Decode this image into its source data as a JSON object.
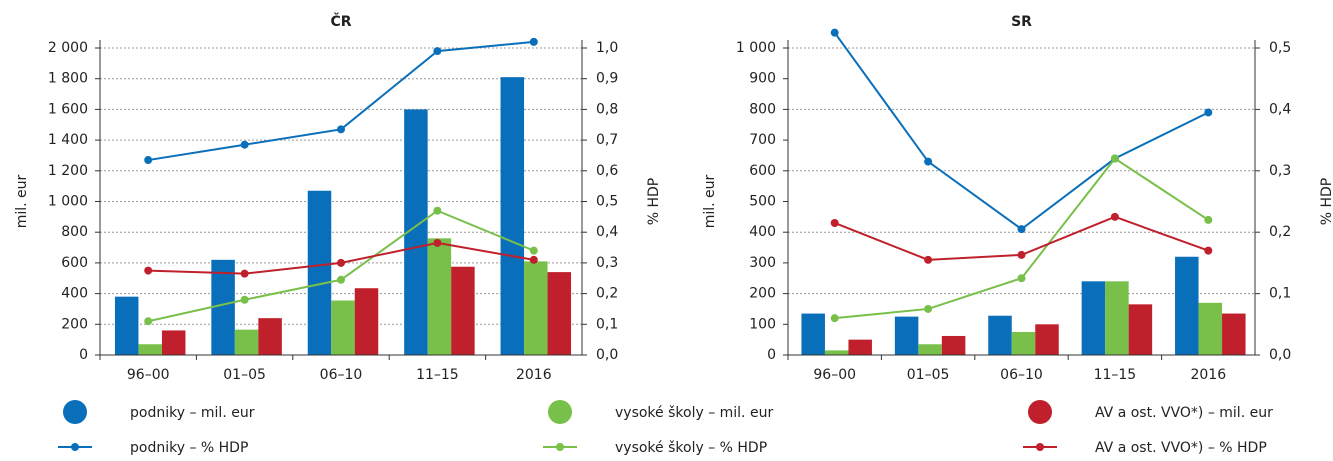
{
  "chart_data": [
    {
      "type": "bar",
      "title": "ČR",
      "ylabel": "mil. eur",
      "y2label": "% HDP",
      "categories": [
        "96–00",
        "01–05",
        "06–10",
        "11–15",
        "2016"
      ],
      "ylim": [
        0,
        2000
      ],
      "yticks": [
        0,
        200,
        400,
        600,
        800,
        {
          "value": 1000,
          "label": "1 000"
        },
        {
          "value": 1200,
          "label": "1 200"
        },
        {
          "value": 1400,
          "label": "1 400"
        },
        {
          "value": 1600,
          "label": "1 600"
        },
        {
          "value": 1800,
          "label": "1 800"
        },
        {
          "value": 2000,
          "label": "2 000"
        }
      ],
      "y2lim": [
        0,
        1.0
      ],
      "y2ticks": [
        {
          "value": 0,
          "label": "0,0"
        },
        {
          "value": 0.1,
          "label": "0,1"
        },
        {
          "value": 0.2,
          "label": "0,2"
        },
        {
          "value": 0.3,
          "label": "0,3"
        },
        {
          "value": 0.4,
          "label": "0,4"
        },
        {
          "value": 0.5,
          "label": "0,5"
        },
        {
          "value": 0.6,
          "label": "0,6"
        },
        {
          "value": 0.7,
          "label": "0,7"
        },
        {
          "value": 0.8,
          "label": "0,8"
        },
        {
          "value": 0.9,
          "label": "0,9"
        },
        {
          "value": 1.0,
          "label": "1,0"
        }
      ],
      "grid": true,
      "series": [
        {
          "name": "podniky – mil. eur",
          "type": "bar",
          "color": "#0a6fba",
          "values": [
            380,
            620,
            1070,
            1600,
            1810
          ]
        },
        {
          "name": "vysoké školy – mil. eur",
          "type": "bar",
          "color": "#78c04a",
          "values": [
            70,
            165,
            355,
            760,
            610
          ]
        },
        {
          "name": "AV a ost. VVO*) – mil. eur",
          "type": "bar",
          "color": "#c0202b",
          "values": [
            160,
            240,
            435,
            575,
            540
          ]
        },
        {
          "name": "podniky – % HDP",
          "type": "line",
          "axis": "y2",
          "color": "#0a6fba",
          "values": [
            0.635,
            0.685,
            0.735,
            0.99,
            1.02
          ]
        },
        {
          "name": "vysoké školy – % HDP",
          "type": "line",
          "axis": "y2",
          "color": "#78c04a",
          "values": [
            0.11,
            0.18,
            0.245,
            0.47,
            0.34
          ]
        },
        {
          "name": "AV a ost. VVO*) – % HDP",
          "type": "line",
          "axis": "y2",
          "color": "#c0202b",
          "values": [
            0.275,
            0.265,
            0.3,
            0.365,
            0.31
          ]
        }
      ]
    },
    {
      "type": "bar",
      "title": "SR",
      "ylabel": "mil. eur",
      "y2label": "% HDP",
      "categories": [
        "96–00",
        "01–05",
        "06–10",
        "11–15",
        "2016"
      ],
      "ylim": [
        0,
        1000
      ],
      "yticks": [
        0,
        100,
        200,
        300,
        400,
        500,
        600,
        700,
        800,
        900,
        {
          "value": 1000,
          "label": "1 000"
        }
      ],
      "y2lim": [
        0,
        0.5
      ],
      "y2ticks": [
        {
          "value": 0,
          "label": "0,0"
        },
        {
          "value": 0.1,
          "label": "0,1"
        },
        {
          "value": 0.2,
          "label": "0,2"
        },
        {
          "value": 0.3,
          "label": "0,3"
        },
        {
          "value": 0.4,
          "label": "0,4"
        },
        {
          "value": 0.5,
          "label": "0,5"
        }
      ],
      "grid": true,
      "series": [
        {
          "name": "podniky – mil. eur",
          "type": "bar",
          "color": "#0a6fba",
          "values": [
            135,
            125,
            128,
            240,
            320
          ]
        },
        {
          "name": "vysoké školy – mil. eur",
          "type": "bar",
          "color": "#78c04a",
          "values": [
            15,
            35,
            75,
            240,
            170
          ]
        },
        {
          "name": "AV a ost. VVO*) – mil. eur",
          "type": "bar",
          "color": "#c0202b",
          "values": [
            50,
            62,
            100,
            165,
            135
          ]
        },
        {
          "name": "podniky – % HDP",
          "type": "line",
          "axis": "y2",
          "color": "#0a6fba",
          "values": [
            0.525,
            0.315,
            0.205,
            0.32,
            0.395
          ]
        },
        {
          "name": "vysoké školy – % HDP",
          "type": "line",
          "axis": "y2",
          "color": "#78c04a",
          "values": [
            0.06,
            0.075,
            0.125,
            0.32,
            0.22
          ]
        },
        {
          "name": "AV a ost. VVO*) – % HDP",
          "type": "line",
          "axis": "y2",
          "color": "#c0202b",
          "values": [
            0.215,
            0.155,
            0.163,
            0.225,
            0.17
          ]
        }
      ]
    }
  ]
}
